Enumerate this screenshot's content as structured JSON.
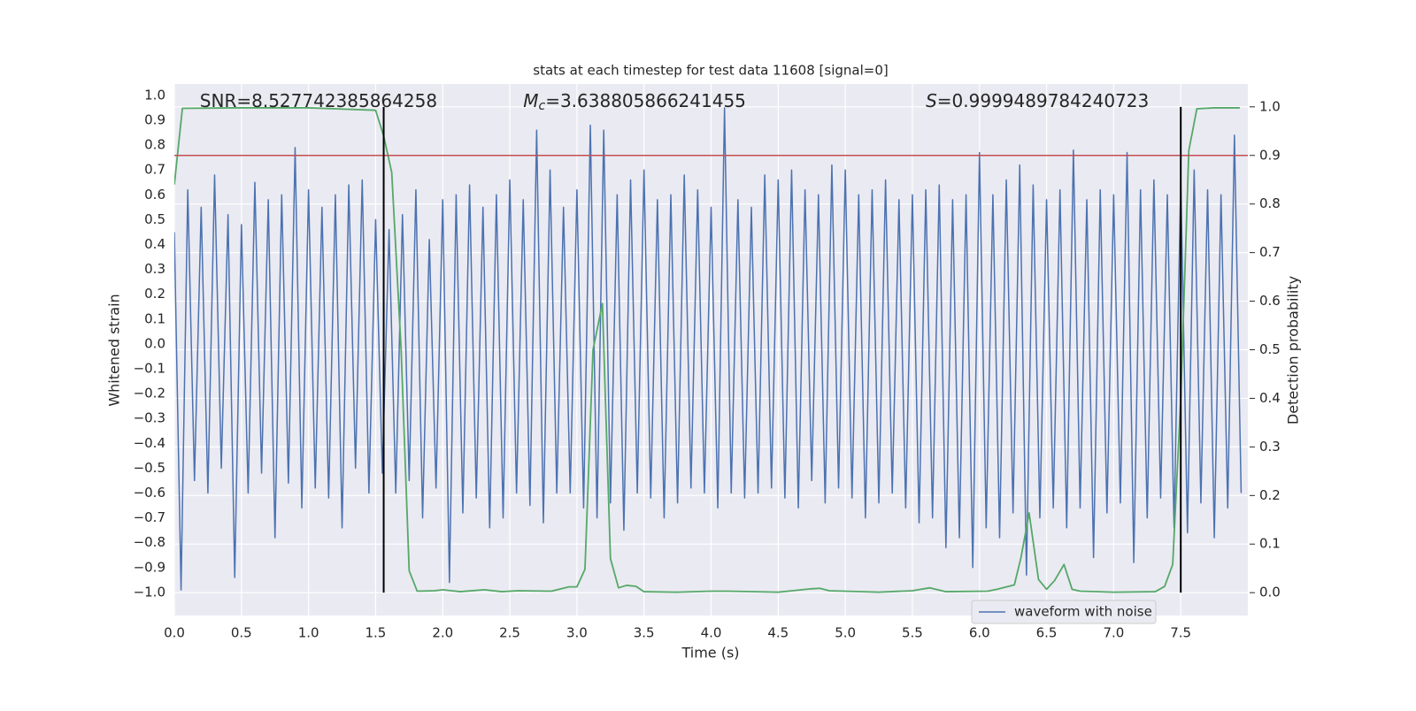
{
  "chart_data": {
    "type": "line",
    "title": "stats at each timestep for test data 11608 [signal=0]",
    "xlabel": "Time (s)",
    "ylabel": "Whitened strain",
    "y2label": "Detection probability",
    "xlim": [
      0,
      8.0
    ],
    "ylim": [
      -1.093,
      1.046
    ],
    "y2lim": [
      -0.047,
      1.047
    ],
    "xticks": [
      {
        "value": 0.0,
        "label": "0.0"
      },
      0.5,
      {
        "value": 1.0,
        "label": "1.0"
      },
      1.5,
      {
        "value": 2.0,
        "label": "2.0"
      },
      2.5,
      {
        "value": 3.0,
        "label": "3.0"
      },
      3.5,
      {
        "value": 4.0,
        "label": "4.0"
      },
      4.5,
      {
        "value": 5.0,
        "label": "5.0"
      },
      5.5,
      {
        "value": 6.0,
        "label": "6.0"
      },
      6.5,
      {
        "value": 7.0,
        "label": "7.0"
      },
      7.5
    ],
    "yticks": [
      {
        "value": 1.0,
        "label": "1.0"
      },
      0.9,
      0.8,
      0.7,
      0.6,
      0.5,
      0.4,
      0.3,
      0.2,
      0.1,
      {
        "value": 0.0,
        "label": "0.0"
      },
      {
        "value": -0.1,
        "label": "−0.1"
      },
      {
        "value": -0.2,
        "label": "−0.2"
      },
      {
        "value": -0.3,
        "label": "−0.3"
      },
      {
        "value": -0.4,
        "label": "−0.4"
      },
      {
        "value": -0.5,
        "label": "−0.5"
      },
      {
        "value": -0.6,
        "label": "−0.6"
      },
      {
        "value": -0.7,
        "label": "−0.7"
      },
      {
        "value": -0.8,
        "label": "−0.8"
      },
      {
        "value": -0.9,
        "label": "−0.9"
      },
      {
        "value": -1.0,
        "label": "−1.0"
      }
    ],
    "y2ticks": [
      {
        "value": 0.0,
        "label": "0.0"
      },
      0.1,
      0.2,
      0.3,
      0.4,
      0.5,
      0.6,
      0.7,
      0.8,
      0.9,
      {
        "value": 1.0,
        "label": "1.0"
      }
    ],
    "grid": true,
    "legend": "lower right",
    "series": [
      {
        "name": "waveform with noise",
        "color": "#4c72b0",
        "x": [
          0,
          0.05,
          0.1,
          0.15,
          0.2,
          0.25,
          0.3,
          0.35,
          0.4,
          0.45,
          0.5,
          0.55,
          0.6,
          0.65,
          0.7,
          0.75,
          0.8,
          0.85,
          0.9,
          0.95,
          1,
          1.05,
          1.1,
          1.15,
          1.2,
          1.25,
          1.3,
          1.35,
          1.4,
          1.45,
          1.5,
          1.55,
          1.6,
          1.65,
          1.7,
          1.75,
          1.8,
          1.85,
          1.9,
          1.95,
          2,
          2.05,
          2.1,
          2.15,
          2.2,
          2.25,
          2.3,
          2.35,
          2.4,
          2.45,
          2.5,
          2.55,
          2.6,
          2.65,
          2.7,
          2.75,
          2.8,
          2.85,
          2.9,
          2.95,
          3,
          3.05,
          3.1,
          3.15,
          3.2,
          3.25,
          3.3,
          3.35,
          3.4,
          3.45,
          3.5,
          3.55,
          3.6,
          3.65,
          3.7,
          3.75,
          3.8,
          3.85,
          3.9,
          3.95,
          4,
          4.05,
          4.1,
          4.15,
          4.2,
          4.25,
          4.3,
          4.35,
          4.4,
          4.45,
          4.5,
          4.55,
          4.6,
          4.65,
          4.7,
          4.75,
          4.8,
          4.85,
          4.9,
          4.95,
          5,
          5.05,
          5.1,
          5.15,
          5.2,
          5.25,
          5.3,
          5.35,
          5.4,
          5.45,
          5.5,
          5.55,
          5.6,
          5.65,
          5.7,
          5.75,
          5.8,
          5.85,
          5.9,
          5.95,
          6,
          6.05,
          6.1,
          6.15,
          6.2,
          6.25,
          6.3,
          6.35,
          6.4,
          6.45,
          6.5,
          6.55,
          6.6,
          6.65,
          6.7,
          6.75,
          6.8,
          6.85,
          6.9,
          6.95,
          7,
          7.05,
          7.1,
          7.15,
          7.2,
          7.25,
          7.3,
          7.35,
          7.4,
          7.45,
          7.5,
          7.55,
          7.6,
          7.65,
          7.7,
          7.75,
          7.8,
          7.85,
          7.9,
          7.95
        ],
        "values": [
          0.45,
          -0.99,
          0.62,
          -0.55,
          0.55,
          -0.6,
          0.68,
          -0.5,
          0.52,
          -0.94,
          0.48,
          -0.6,
          0.65,
          -0.52,
          0.58,
          -0.78,
          0.6,
          -0.56,
          0.79,
          -0.66,
          0.62,
          -0.58,
          0.55,
          -0.62,
          0.6,
          -0.74,
          0.64,
          -0.5,
          0.66,
          -0.6,
          0.5,
          -0.52,
          0.46,
          -0.6,
          0.52,
          -0.55,
          0.62,
          -0.7,
          0.42,
          -0.58,
          0.58,
          -0.96,
          0.6,
          -0.68,
          0.64,
          -0.62,
          0.55,
          -0.74,
          0.6,
          -0.7,
          0.66,
          -0.6,
          0.58,
          -0.65,
          0.86,
          -0.72,
          0.7,
          -0.6,
          0.55,
          -0.6,
          0.62,
          -0.66,
          0.88,
          -0.7,
          0.86,
          -0.64,
          0.6,
          -0.75,
          0.66,
          -0.6,
          0.7,
          -0.62,
          0.58,
          -0.7,
          0.6,
          -0.64,
          0.68,
          -0.58,
          0.62,
          -0.6,
          0.55,
          -0.66,
          0.95,
          -0.6,
          0.58,
          -0.62,
          0.55,
          -0.6,
          0.68,
          -0.58,
          0.66,
          -0.62,
          0.7,
          -0.66,
          0.62,
          -0.55,
          0.6,
          -0.64,
          0.72,
          -0.58,
          0.7,
          -0.62,
          0.6,
          -0.7,
          0.62,
          -0.64,
          0.66,
          -0.6,
          0.58,
          -0.66,
          0.6,
          -0.72,
          0.62,
          -0.7,
          0.64,
          -0.82,
          0.58,
          -0.78,
          0.6,
          -0.9,
          0.77,
          -0.74,
          0.6,
          -0.78,
          0.66,
          -0.68,
          0.72,
          -0.93,
          0.64,
          -0.7,
          0.58,
          -0.66,
          0.62,
          -0.74,
          0.78,
          -0.66,
          0.58,
          -0.86,
          0.62,
          -0.68,
          0.6,
          -0.64,
          0.77,
          -0.88,
          0.62,
          -0.7,
          0.66,
          -0.62,
          0.6,
          -0.74,
          0.66,
          -0.76,
          0.7,
          -0.64,
          0.62,
          -0.78,
          0.6,
          -0.66,
          0.84,
          -0.6
        ]
      },
      {
        "axis": "y2",
        "color": "#55a868",
        "x": [
          0,
          0.06,
          0.5,
          1.0,
          1.5,
          1.56,
          1.62,
          1.69,
          1.75,
          1.81,
          1.94,
          2.0,
          2.13,
          2.31,
          2.44,
          2.56,
          2.81,
          2.94,
          3.0,
          3.06,
          3.12,
          3.19,
          3.25,
          3.31,
          3.37,
          3.44,
          3.5,
          3.75,
          4.0,
          4.13,
          4.5,
          4.75,
          4.81,
          4.88,
          5.25,
          5.5,
          5.63,
          5.75,
          6.06,
          6.13,
          6.26,
          6.31,
          6.37,
          6.44,
          6.5,
          6.56,
          6.63,
          6.69,
          6.75,
          7.0,
          7.31,
          7.38,
          7.44,
          7.5,
          7.56,
          7.62,
          7.75,
          7.94
        ],
        "values": [
          0.84,
          0.997,
          0.998,
          0.998,
          0.993,
          0.94,
          0.865,
          0.5,
          0.045,
          0.003,
          0.004,
          0.006,
          0.002,
          0.006,
          0.002,
          0.004,
          0.003,
          0.012,
          0.012,
          0.048,
          0.5,
          0.595,
          0.07,
          0.01,
          0.015,
          0.013,
          0.002,
          0.001,
          0.003,
          0.003,
          0.001,
          0.008,
          0.009,
          0.004,
          0.001,
          0.004,
          0.01,
          0.002,
          0.003,
          0.007,
          0.016,
          0.073,
          0.164,
          0.027,
          0.007,
          0.025,
          0.058,
          0.007,
          0.003,
          0.001,
          0.002,
          0.013,
          0.058,
          0.4,
          0.91,
          0.996,
          0.998,
          0.998
        ]
      }
    ],
    "threshold": {
      "value": 0.9,
      "axis": "y2",
      "color": "#c44e52"
    },
    "vlines": {
      "x": [
        1.56,
        7.5
      ],
      "ymin": 0.0,
      "ymax": 1.0,
      "axis": "y2",
      "color": "#000000"
    },
    "annotations": [
      {
        "text": "SNR=8.527742385864258",
        "x": 0.19
      },
      {
        "symbol": "M",
        "subscript": "c",
        "text": "=3.638805866241455",
        "x": 2.6
      },
      {
        "symbol": "S",
        "text": "=0.9999489784240723",
        "x": 5.6
      }
    ]
  }
}
